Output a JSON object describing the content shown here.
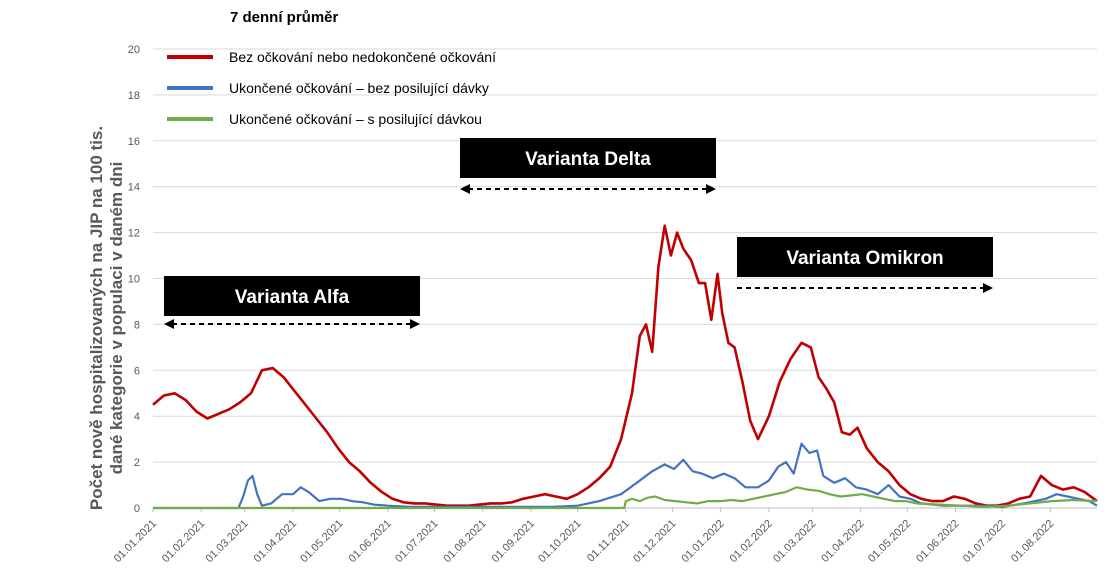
{
  "chart_data": {
    "type": "line",
    "title": "",
    "ylabel_line1": "Počet nově hospitalizovaných na JIP na 100 tis.",
    "ylabel_line2": "dané kategorie v populaci v daném dni",
    "ylim": [
      0,
      20
    ],
    "yticks": [
      "0",
      "2",
      "4",
      "6",
      "8",
      "10",
      "12",
      "14",
      "16",
      "18",
      "20"
    ],
    "xticks": [
      "01.01.2021",
      "01.02.2021",
      "01.03.2021",
      "01.04.2021",
      "01.05.2021",
      "01.06.2021",
      "01.07.2021",
      "01.08.2021",
      "01.09.2021",
      "01.10.2021",
      "01.11.2021",
      "01.12.2021",
      "01.01.2022",
      "01.02.2022",
      "01.03.2022",
      "01.04.2022",
      "01.05.2022",
      "01.06.2022",
      "01.07.2022",
      "01.08.2022"
    ],
    "x_end": "2022-08-31",
    "grid": true,
    "legend": {
      "title": "7 denní průměr",
      "position": "top-left"
    },
    "series": [
      {
        "name": "Bez očkování nebo nedokončené očkování",
        "color": "#c00000",
        "points": [
          [
            "2021-01-01",
            4.5
          ],
          [
            "2021-01-08",
            4.9
          ],
          [
            "2021-01-15",
            5.0
          ],
          [
            "2021-01-22",
            4.7
          ],
          [
            "2021-01-29",
            4.2
          ],
          [
            "2021-02-05",
            3.9
          ],
          [
            "2021-02-12",
            4.1
          ],
          [
            "2021-02-19",
            4.3
          ],
          [
            "2021-02-26",
            4.6
          ],
          [
            "2021-03-05",
            5.0
          ],
          [
            "2021-03-12",
            6.0
          ],
          [
            "2021-03-19",
            6.1
          ],
          [
            "2021-03-26",
            5.7
          ],
          [
            "2021-04-02",
            5.1
          ],
          [
            "2021-04-09",
            4.5
          ],
          [
            "2021-04-16",
            3.9
          ],
          [
            "2021-04-23",
            3.3
          ],
          [
            "2021-04-30",
            2.6
          ],
          [
            "2021-05-07",
            2.0
          ],
          [
            "2021-05-14",
            1.6
          ],
          [
            "2021-05-21",
            1.1
          ],
          [
            "2021-05-28",
            0.7
          ],
          [
            "2021-06-04",
            0.4
          ],
          [
            "2021-06-11",
            0.25
          ],
          [
            "2021-06-18",
            0.2
          ],
          [
            "2021-06-25",
            0.2
          ],
          [
            "2021-07-02",
            0.15
          ],
          [
            "2021-07-09",
            0.1
          ],
          [
            "2021-07-16",
            0.1
          ],
          [
            "2021-07-23",
            0.1
          ],
          [
            "2021-07-30",
            0.15
          ],
          [
            "2021-08-06",
            0.2
          ],
          [
            "2021-08-13",
            0.2
          ],
          [
            "2021-08-20",
            0.25
          ],
          [
            "2021-08-27",
            0.4
          ],
          [
            "2021-09-03",
            0.5
          ],
          [
            "2021-09-10",
            0.6
          ],
          [
            "2021-09-17",
            0.5
          ],
          [
            "2021-09-24",
            0.4
          ],
          [
            "2021-10-01",
            0.6
          ],
          [
            "2021-10-08",
            0.9
          ],
          [
            "2021-10-15",
            1.3
          ],
          [
            "2021-10-22",
            1.8
          ],
          [
            "2021-10-29",
            3.0
          ],
          [
            "2021-11-05",
            5.0
          ],
          [
            "2021-11-10",
            7.5
          ],
          [
            "2021-11-14",
            8.0
          ],
          [
            "2021-11-18",
            6.8
          ],
          [
            "2021-11-22",
            10.5
          ],
          [
            "2021-11-26",
            12.3
          ],
          [
            "2021-11-30",
            11.0
          ],
          [
            "2021-12-04",
            12.0
          ],
          [
            "2021-12-08",
            11.3
          ],
          [
            "2021-12-13",
            10.8
          ],
          [
            "2021-12-18",
            9.8
          ],
          [
            "2021-12-22",
            9.8
          ],
          [
            "2021-12-26",
            8.2
          ],
          [
            "2021-12-30",
            10.2
          ],
          [
            "2022-01-02",
            8.5
          ],
          [
            "2022-01-06",
            7.2
          ],
          [
            "2022-01-10",
            7.0
          ],
          [
            "2022-01-15",
            5.5
          ],
          [
            "2022-01-20",
            3.8
          ],
          [
            "2022-01-25",
            3.0
          ],
          [
            "2022-02-01",
            4.0
          ],
          [
            "2022-02-08",
            5.5
          ],
          [
            "2022-02-15",
            6.5
          ],
          [
            "2022-02-22",
            7.2
          ],
          [
            "2022-02-28",
            7.0
          ],
          [
            "2022-03-05",
            5.7
          ],
          [
            "2022-03-10",
            5.2
          ],
          [
            "2022-03-15",
            4.6
          ],
          [
            "2022-03-20",
            3.3
          ],
          [
            "2022-03-25",
            3.2
          ],
          [
            "2022-03-30",
            3.5
          ],
          [
            "2022-04-05",
            2.6
          ],
          [
            "2022-04-12",
            2.0
          ],
          [
            "2022-04-19",
            1.6
          ],
          [
            "2022-04-26",
            1.0
          ],
          [
            "2022-05-03",
            0.6
          ],
          [
            "2022-05-10",
            0.4
          ],
          [
            "2022-05-17",
            0.3
          ],
          [
            "2022-05-24",
            0.3
          ],
          [
            "2022-05-31",
            0.5
          ],
          [
            "2022-06-07",
            0.4
          ],
          [
            "2022-06-14",
            0.2
          ],
          [
            "2022-06-21",
            0.1
          ],
          [
            "2022-06-28",
            0.1
          ],
          [
            "2022-07-05",
            0.2
          ],
          [
            "2022-07-12",
            0.4
          ],
          [
            "2022-07-19",
            0.5
          ],
          [
            "2022-07-26",
            1.4
          ],
          [
            "2022-08-02",
            1.0
          ],
          [
            "2022-08-09",
            0.8
          ],
          [
            "2022-08-16",
            0.9
          ],
          [
            "2022-08-23",
            0.7
          ],
          [
            "2022-08-31",
            0.3
          ]
        ]
      },
      {
        "name": "Ukončené očkování – bez posilující dávky",
        "color": "#4472c4",
        "points": [
          [
            "2021-01-01",
            0.0
          ],
          [
            "2021-02-25",
            0.0
          ],
          [
            "2021-02-28",
            0.5
          ],
          [
            "2021-03-03",
            1.2
          ],
          [
            "2021-03-06",
            1.4
          ],
          [
            "2021-03-09",
            0.6
          ],
          [
            "2021-03-12",
            0.1
          ],
          [
            "2021-03-18",
            0.2
          ],
          [
            "2021-03-25",
            0.6
          ],
          [
            "2021-04-01",
            0.6
          ],
          [
            "2021-04-06",
            0.9
          ],
          [
            "2021-04-11",
            0.7
          ],
          [
            "2021-04-18",
            0.3
          ],
          [
            "2021-04-25",
            0.4
          ],
          [
            "2021-05-02",
            0.4
          ],
          [
            "2021-05-09",
            0.3
          ],
          [
            "2021-05-16",
            0.25
          ],
          [
            "2021-05-23",
            0.15
          ],
          [
            "2021-06-01",
            0.1
          ],
          [
            "2021-06-15",
            0.05
          ],
          [
            "2021-07-15",
            0.05
          ],
          [
            "2021-08-15",
            0.05
          ],
          [
            "2021-09-15",
            0.05
          ],
          [
            "2021-10-01",
            0.1
          ],
          [
            "2021-10-15",
            0.3
          ],
          [
            "2021-10-29",
            0.6
          ],
          [
            "2021-11-08",
            1.1
          ],
          [
            "2021-11-18",
            1.6
          ],
          [
            "2021-11-26",
            1.9
          ],
          [
            "2021-12-02",
            1.7
          ],
          [
            "2021-12-08",
            2.1
          ],
          [
            "2021-12-14",
            1.6
          ],
          [
            "2021-12-20",
            1.5
          ],
          [
            "2021-12-27",
            1.3
          ],
          [
            "2022-01-03",
            1.5
          ],
          [
            "2022-01-10",
            1.3
          ],
          [
            "2022-01-17",
            0.9
          ],
          [
            "2022-01-25",
            0.9
          ],
          [
            "2022-02-01",
            1.2
          ],
          [
            "2022-02-07",
            1.8
          ],
          [
            "2022-02-12",
            2.0
          ],
          [
            "2022-02-17",
            1.5
          ],
          [
            "2022-02-22",
            2.8
          ],
          [
            "2022-02-27",
            2.4
          ],
          [
            "2022-03-04",
            2.5
          ],
          [
            "2022-03-08",
            1.4
          ],
          [
            "2022-03-15",
            1.1
          ],
          [
            "2022-03-22",
            1.3
          ],
          [
            "2022-03-29",
            0.9
          ],
          [
            "2022-04-05",
            0.8
          ],
          [
            "2022-04-12",
            0.6
          ],
          [
            "2022-04-19",
            1.0
          ],
          [
            "2022-04-26",
            0.5
          ],
          [
            "2022-05-03",
            0.4
          ],
          [
            "2022-05-10",
            0.2
          ],
          [
            "2022-05-24",
            0.1
          ],
          [
            "2022-06-15",
            0.1
          ],
          [
            "2022-07-01",
            0.05
          ],
          [
            "2022-07-15",
            0.2
          ],
          [
            "2022-07-29",
            0.4
          ],
          [
            "2022-08-05",
            0.6
          ],
          [
            "2022-08-12",
            0.5
          ],
          [
            "2022-08-19",
            0.4
          ],
          [
            "2022-08-26",
            0.3
          ],
          [
            "2022-08-31",
            0.1
          ]
        ]
      },
      {
        "name": "Ukončené očkování – s posilující dávkou",
        "color": "#70ad47",
        "points": [
          [
            "2021-01-01",
            0.0
          ],
          [
            "2021-10-31",
            0.0
          ],
          [
            "2021-11-01",
            0.3
          ],
          [
            "2021-11-05",
            0.4
          ],
          [
            "2021-11-10",
            0.3
          ],
          [
            "2021-11-15",
            0.45
          ],
          [
            "2021-11-20",
            0.5
          ],
          [
            "2021-11-26",
            0.35
          ],
          [
            "2021-12-03",
            0.3
          ],
          [
            "2021-12-10",
            0.25
          ],
          [
            "2021-12-17",
            0.2
          ],
          [
            "2021-12-24",
            0.3
          ],
          [
            "2022-01-01",
            0.3
          ],
          [
            "2022-01-08",
            0.35
          ],
          [
            "2022-01-15",
            0.3
          ],
          [
            "2022-01-22",
            0.4
          ],
          [
            "2022-01-29",
            0.5
          ],
          [
            "2022-02-05",
            0.6
          ],
          [
            "2022-02-12",
            0.7
          ],
          [
            "2022-02-19",
            0.9
          ],
          [
            "2022-02-26",
            0.8
          ],
          [
            "2022-03-05",
            0.75
          ],
          [
            "2022-03-12",
            0.6
          ],
          [
            "2022-03-19",
            0.5
          ],
          [
            "2022-03-26",
            0.55
          ],
          [
            "2022-04-02",
            0.6
          ],
          [
            "2022-04-09",
            0.5
          ],
          [
            "2022-04-16",
            0.4
          ],
          [
            "2022-04-23",
            0.3
          ],
          [
            "2022-04-30",
            0.3
          ],
          [
            "2022-05-07",
            0.2
          ],
          [
            "2022-05-21",
            0.15
          ],
          [
            "2022-06-05",
            0.1
          ],
          [
            "2022-06-20",
            0.05
          ],
          [
            "2022-07-05",
            0.1
          ],
          [
            "2022-07-19",
            0.2
          ],
          [
            "2022-08-02",
            0.3
          ],
          [
            "2022-08-16",
            0.35
          ],
          [
            "2022-08-31",
            0.3
          ]
        ]
      }
    ],
    "annotations": [
      {
        "label": "Varianta Alfa",
        "from": "2021-01-01",
        "to": "2021-06-30",
        "y": 8.0
      },
      {
        "label": "Varianta Delta",
        "from": "2021-07-15",
        "to": "2021-12-31",
        "y": 14.0
      },
      {
        "label": "Varianta Omikron",
        "from": "2022-01-15",
        "to": "2022-06-30",
        "y": 9.5
      }
    ]
  }
}
